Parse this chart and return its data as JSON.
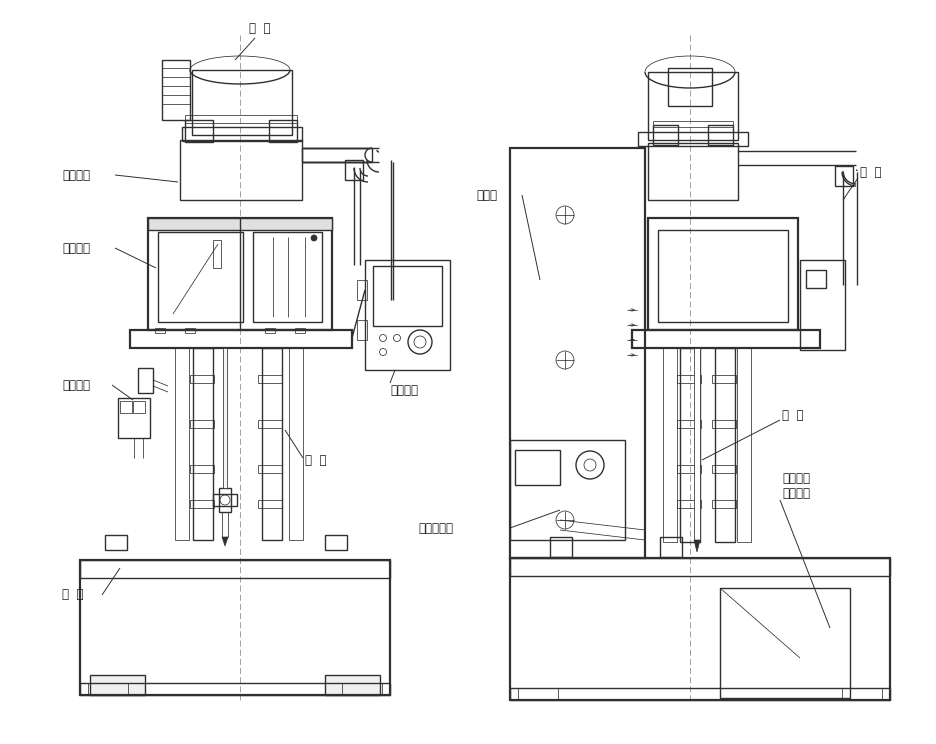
{
  "bg_color": "#ffffff",
  "lc": "#303030",
  "lw": 1.0,
  "tlw": 0.55,
  "thw": 1.6,
  "labels": {
    "motor_left": "电  机",
    "gear_cover": "齿轮箱盖",
    "drive_frame": "传动机架",
    "limit_device": "限位装置",
    "machine_base": "机  座",
    "machine_body": "机  身",
    "electric_box": "电气箱",
    "control_panel": "控制面板",
    "auto_pump": "自动加油泵",
    "swing_tube": "摆  管",
    "drill_rod": "钻  杆",
    "hydraulic_line1": "液压系统",
    "hydraulic_line2": "（内部）"
  }
}
